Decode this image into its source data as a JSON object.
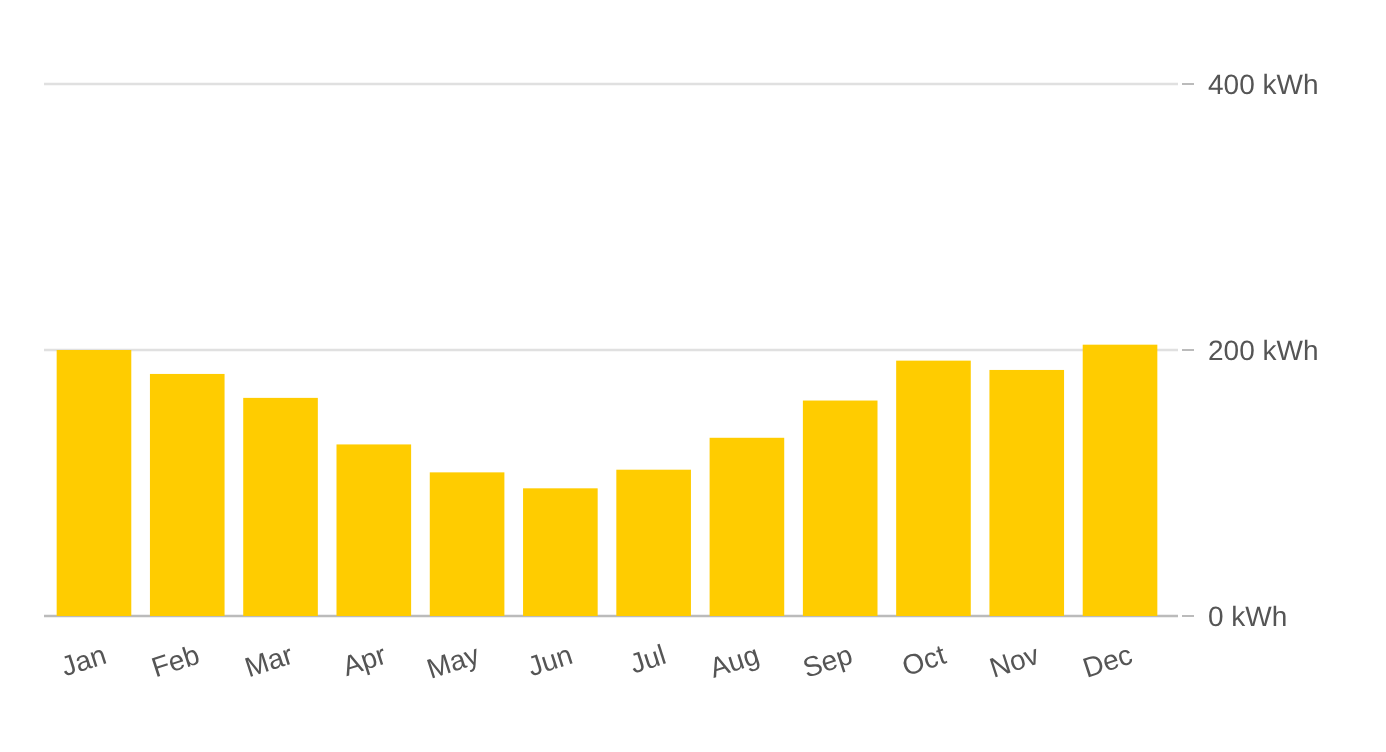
{
  "chart_data": {
    "type": "bar",
    "categories": [
      "Jan",
      "Feb",
      "Mar",
      "Apr",
      "May",
      "Jun",
      "Jul",
      "Aug",
      "Sep",
      "Oct",
      "Nov",
      "Dec"
    ],
    "values": [
      200,
      182,
      164,
      129,
      108,
      96,
      110,
      134,
      162,
      192,
      185,
      204
    ],
    "color": "#ffcc00",
    "ylim": [
      0,
      400
    ],
    "yticks": [
      {
        "value": 0,
        "label": "0 kWh"
      },
      {
        "value": 200,
        "label": "200 kWh"
      },
      {
        "value": 400,
        "label": "400 kWh"
      }
    ],
    "grid": "y"
  }
}
